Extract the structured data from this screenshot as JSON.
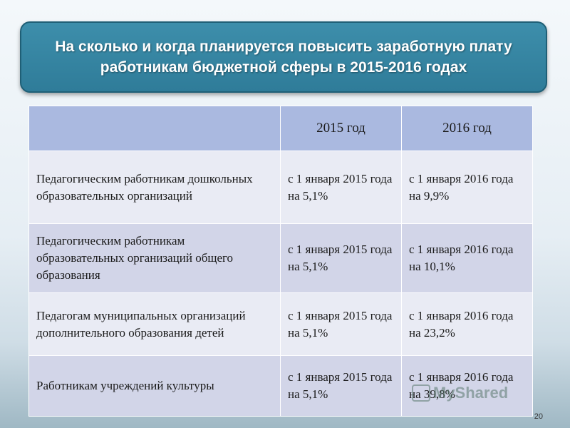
{
  "slide": {
    "title": "На сколько и когда планируется повысить заработную плату работникам бюджетной сферы в 2015-2016 годах",
    "page_number": "20",
    "watermark_text": "MyShared"
  },
  "table": {
    "headers": [
      "",
      "2015 год",
      "2016 год"
    ],
    "rows": [
      {
        "category": "Педагогическим работникам дошкольных образовательных организаций",
        "y2015": "с 1 января 2015 года на 5,1%",
        "y2016": "с 1 января 2016 года на 9,9%"
      },
      {
        "category": "Педагогическим работникам образовательных организаций общего образования",
        "y2015": "с 1 января 2015 года на 5,1%",
        "y2016": "с 1 января 2016 года на 10,1%"
      },
      {
        "category": "Педагогам муниципальных организаций дополнительного образования детей",
        "y2015": "с 1 января 2015 года на 5,1%",
        "y2016": "с 1 января 2016 года на 23,2%"
      },
      {
        "category": "Работникам учреждений культуры",
        "y2015": "с 1 января 2015 года на 5,1%",
        "y2016": "с 1 января 2016 года на 39,8%"
      }
    ]
  },
  "colors": {
    "title_bg": "#2f7c99",
    "header_bg": "#aab9e0",
    "row_odd_bg": "#e9ebf4",
    "row_even_bg": "#d2d5e8"
  }
}
